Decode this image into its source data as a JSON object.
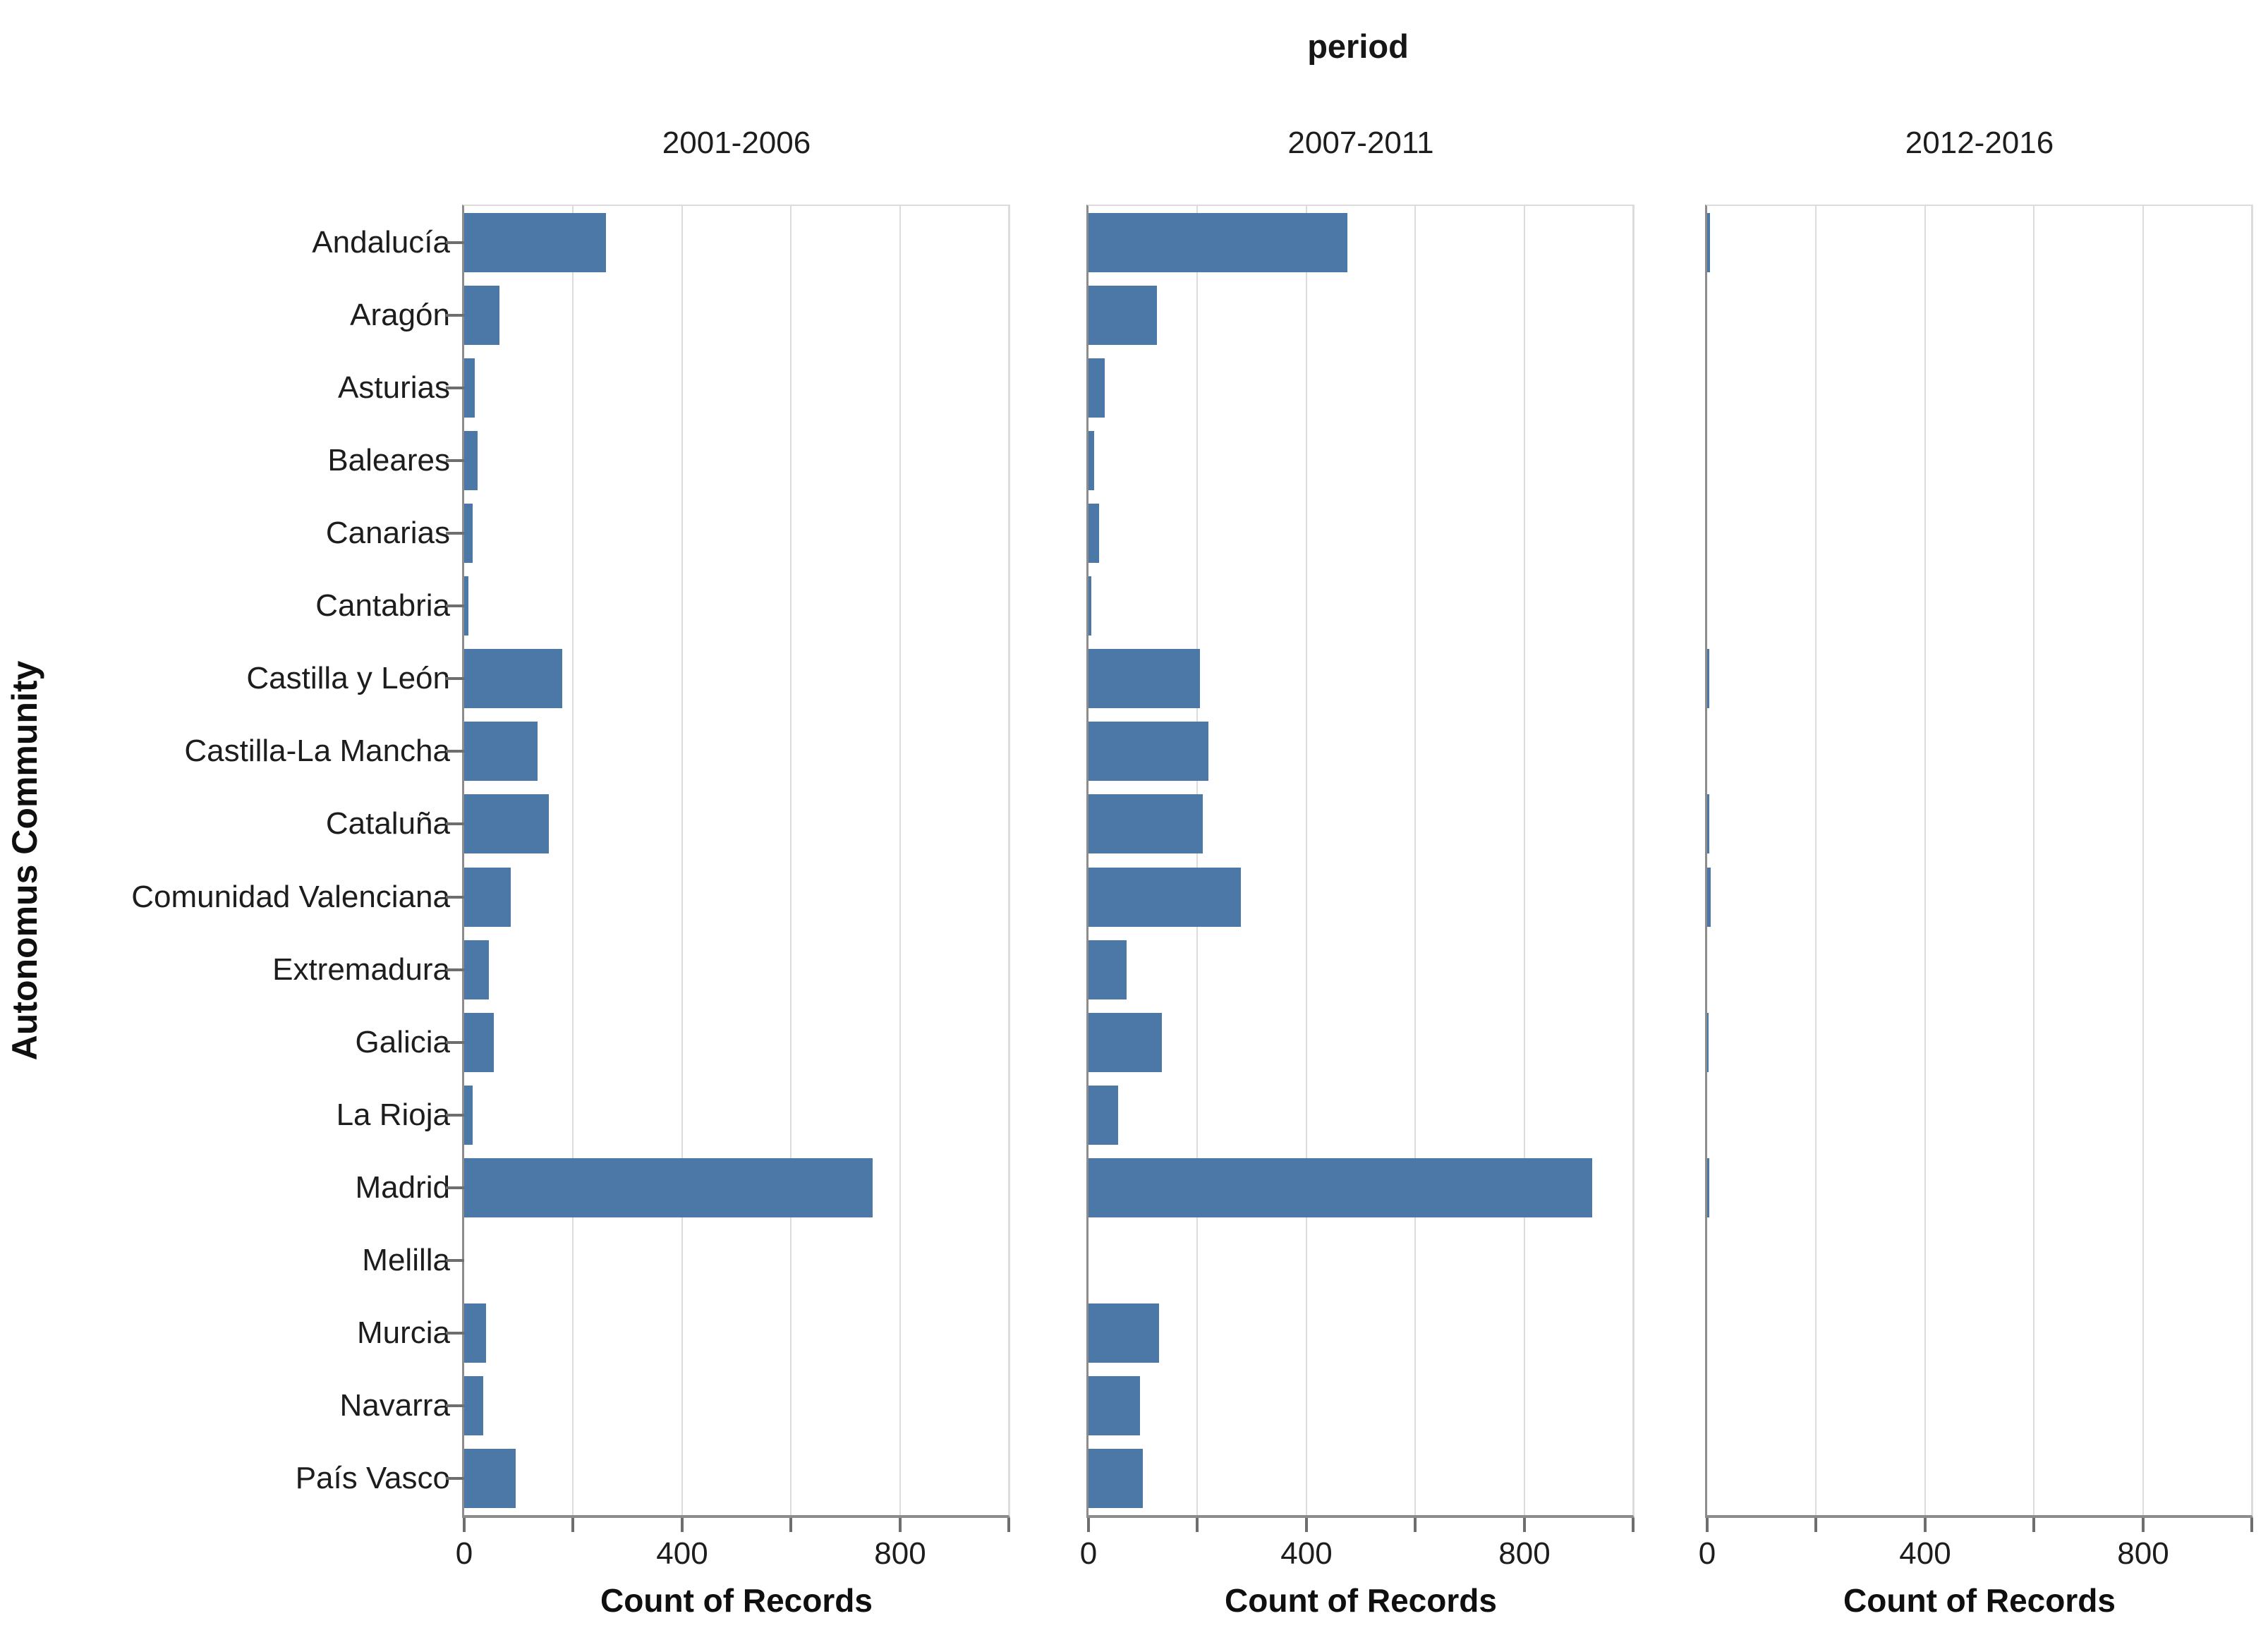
{
  "title": "period",
  "y_axis_title": "Autonomus Community",
  "x_axis_title": "Count of Records",
  "colors": {
    "bar": "#4c78a8",
    "axis_line": "#8c8c8c",
    "gridline": "#dcdcdc",
    "tick": "#6e6e6e",
    "text": "#1d1d1d"
  },
  "chart_data": {
    "type": "bar",
    "orientation": "horizontal",
    "title": "period",
    "xlabel": "Count of Records",
    "ylabel": "Autonomus Community",
    "xlim": [
      0,
      1000
    ],
    "x_tick_step": 200,
    "x_labeled_ticks": [
      0,
      400,
      800
    ],
    "grid": true,
    "facets": [
      "2001-2006",
      "2007-2011",
      "2012-2016"
    ],
    "categories": [
      "Andalucía",
      "Aragón",
      "Asturias",
      "Baleares",
      "Canarias",
      "Cantabria",
      "Castilla y León",
      "Castilla-La Mancha",
      "Cataluña",
      "Comunidad Valenciana",
      "Extremadura",
      "Galicia",
      "La Rioja",
      "Madrid",
      "Melilla",
      "Murcia",
      "Navarra",
      "País Vasco"
    ],
    "series": [
      {
        "name": "2001-2006",
        "values": [
          260,
          65,
          20,
          25,
          15,
          8,
          180,
          135,
          155,
          85,
          45,
          55,
          15,
          750,
          0,
          40,
          35,
          95
        ]
      },
      {
        "name": "2007-2011",
        "values": [
          475,
          125,
          30,
          10,
          20,
          5,
          205,
          220,
          210,
          280,
          70,
          135,
          55,
          925,
          0,
          130,
          95,
          100
        ]
      },
      {
        "name": "2012-2016",
        "values": [
          5,
          0,
          0,
          0,
          0,
          0,
          4,
          0,
          4,
          6,
          0,
          3,
          0,
          4,
          0,
          0,
          0,
          0
        ]
      }
    ]
  }
}
